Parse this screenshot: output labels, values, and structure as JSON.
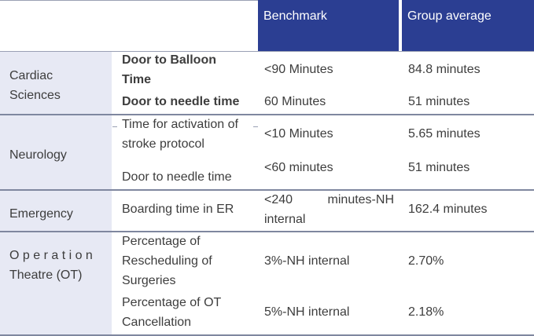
{
  "table": {
    "headers": {
      "benchmark": "Benchmark",
      "group_average": "Group average"
    },
    "sections": [
      {
        "category": [
          "Cardiac",
          "Sciences"
        ],
        "rows": [
          {
            "metric": [
              "Door to Balloon",
              "Time"
            ],
            "metric_bold": true,
            "benchmark": "<90 Minutes",
            "average": "84.8 minutes"
          },
          {
            "metric": [
              "Door to needle time"
            ],
            "metric_bold": true,
            "benchmark": "60 Minutes",
            "average": "51 minutes"
          }
        ]
      },
      {
        "category": [
          "Neurology"
        ],
        "rows": [
          {
            "metric": [
              "Time for activation of",
              "stroke protocol"
            ],
            "benchmark": "<10 Minutes",
            "average": "5.65 minutes"
          },
          {
            "metric": [
              "Door to needle time"
            ],
            "benchmark": "<60 minutes",
            "average": "51 minutes"
          }
        ]
      },
      {
        "category": [
          "Emergency"
        ],
        "rows": [
          {
            "metric": [
              "Boarding time in ER"
            ],
            "benchmark": [
              "<240",
              "minutes-NH",
              "internal"
            ],
            "average": "162.4 minutes"
          }
        ]
      },
      {
        "category": [
          "O p e r a t i o n",
          "Theatre (OT)"
        ],
        "rows": [
          {
            "metric": [
              "Percentage of",
              "Rescheduling of",
              "Surgeries"
            ],
            "benchmark": "3%-NH internal",
            "average": "2.70%"
          },
          {
            "metric": [
              "Percentage of OT",
              "Cancellation"
            ],
            "benchmark": "5%-NH internal",
            "average": "2.18%"
          }
        ]
      }
    ]
  }
}
